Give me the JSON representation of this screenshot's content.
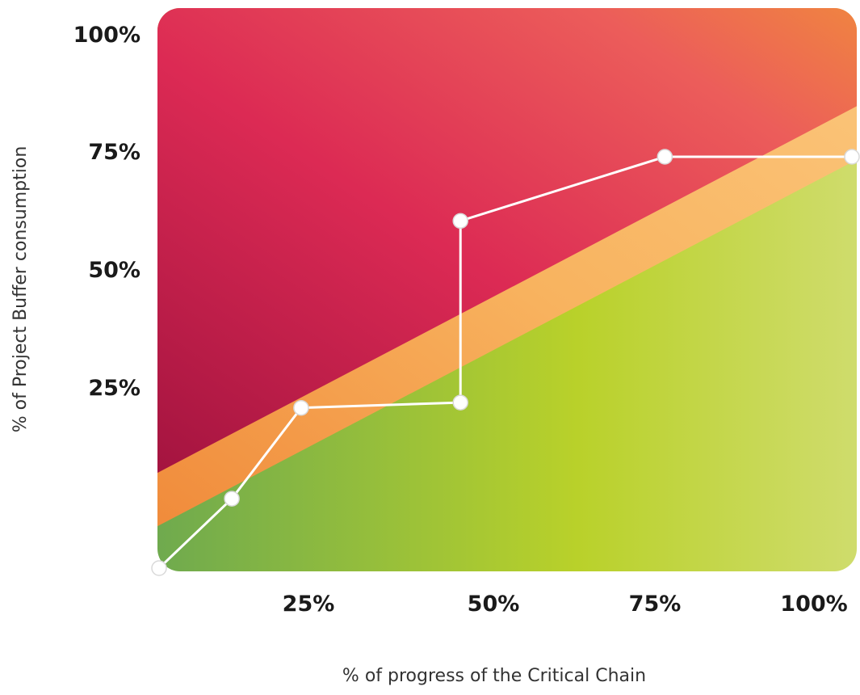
{
  "chart_data": {
    "type": "line",
    "xlabel": "% of progress of the Critical Chain",
    "ylabel": "% of Project Buffer consumption",
    "xlim": [
      0,
      100
    ],
    "ylim": [
      0,
      100
    ],
    "x_ticks": [
      {
        "value": 25,
        "label": "25%"
      },
      {
        "value": 50,
        "label": "50%"
      },
      {
        "value": 75,
        "label": "75%"
      },
      {
        "value": 100,
        "label": "100%"
      }
    ],
    "y_ticks": [
      {
        "value": 25,
        "label": "25%"
      },
      {
        "value": 50,
        "label": "50%"
      },
      {
        "value": 75,
        "label": "75%"
      },
      {
        "value": 100,
        "label": "100%"
      }
    ],
    "zones": [
      {
        "zone": "red",
        "color": "#c8173f",
        "lower_boundary": [
          [
            0,
            18
          ],
          [
            100,
            86
          ]
        ]
      },
      {
        "zone": "yellow",
        "color": "#f9b25a",
        "lower_boundary": [
          [
            0,
            8
          ],
          [
            100,
            76
          ]
        ]
      },
      {
        "zone": "green",
        "color": "#9cc43a"
      }
    ],
    "series": [
      {
        "values": [
          [
            0,
            0
          ],
          [
            10.5,
            13
          ],
          [
            20.5,
            30
          ],
          [
            43.5,
            31
          ],
          [
            43.5,
            65
          ],
          [
            73,
            77
          ],
          [
            100,
            77
          ]
        ]
      }
    ],
    "grid": false,
    "legend": "none",
    "colors": {
      "line": "#ffffff",
      "marker_stroke": "#d9d9d9",
      "tick_text": "#1a1a1a"
    }
  }
}
